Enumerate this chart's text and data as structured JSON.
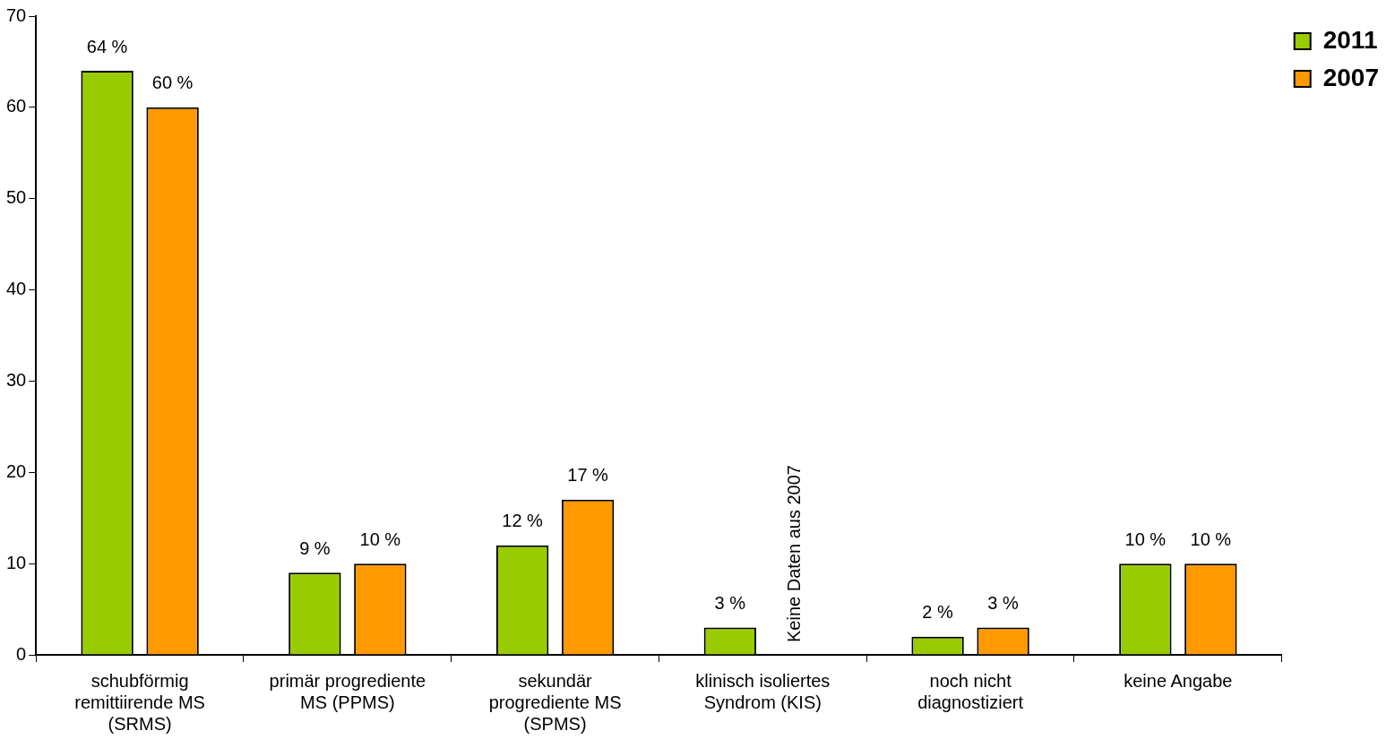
{
  "chart_data": {
    "type": "bar",
    "categories": [
      "schubförmig remittiirende MS (SRMS)",
      "primär progrediente MS (PPMS)",
      "sekundär progrediente MS (SPMS)",
      "klinisch isoliertes Syndrom (KIS)",
      "noch nicht diagnostiziert",
      "keine Angabe"
    ],
    "series": [
      {
        "name": "2011",
        "color": "#99cc00",
        "values": [
          64,
          9,
          12,
          3,
          2,
          10
        ],
        "value_labels": [
          "64 %",
          "9 %",
          "12 %",
          "3 %",
          "2 %",
          "10 %"
        ]
      },
      {
        "name": "2007",
        "color": "#ff9900",
        "values": [
          60,
          10,
          17,
          null,
          3,
          10
        ],
        "value_labels": [
          "60 %",
          "10 %",
          "17 %",
          null,
          "3 %",
          "10 %"
        ]
      }
    ],
    "ylim": [
      0,
      70
    ],
    "yticks": [
      0,
      10,
      20,
      30,
      40,
      50,
      60,
      70
    ],
    "annotations": [
      "Keine Daten aus 2007"
    ],
    "grid": false,
    "legend": "top right"
  }
}
